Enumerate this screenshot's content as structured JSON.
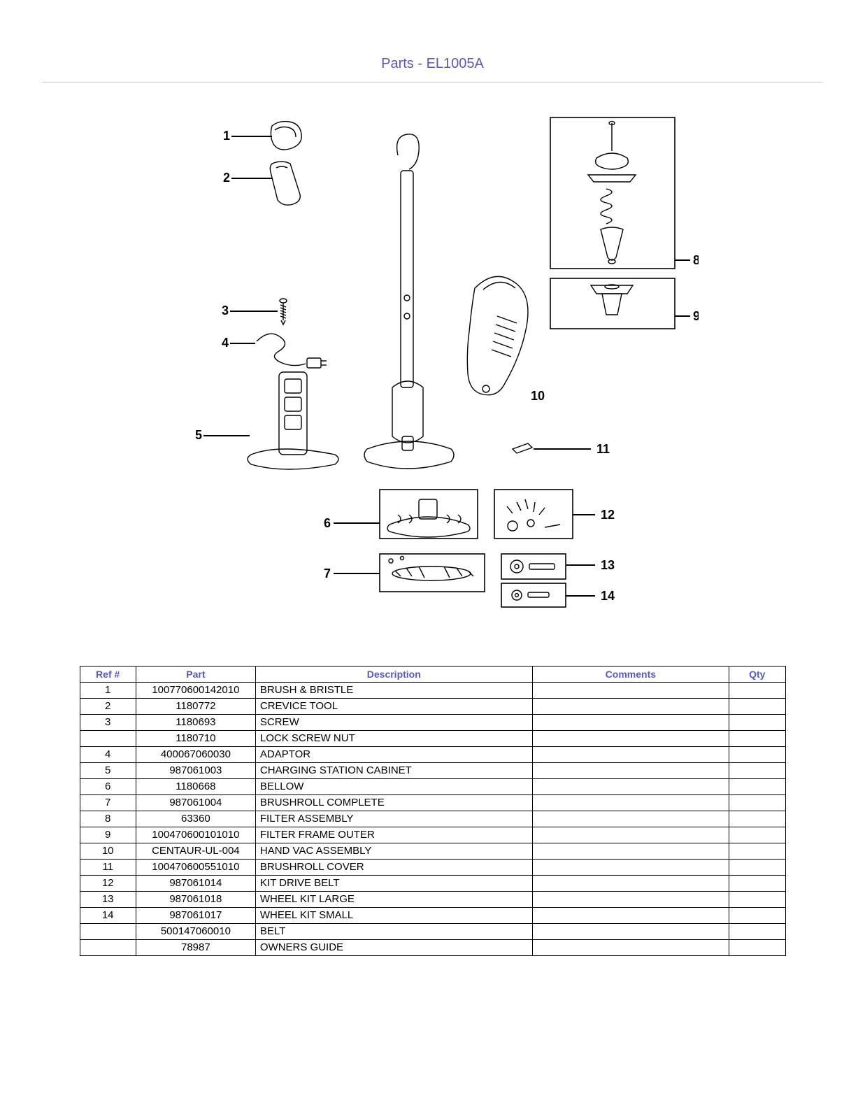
{
  "title": "Parts - EL1005A",
  "colors": {
    "title": "#5a5ab5",
    "hr": "#c8c8e0",
    "header_text": "#5a5ab5",
    "border": "#000000",
    "background": "#ffffff"
  },
  "diagram": {
    "callouts": [
      "1",
      "2",
      "3",
      "4",
      "5",
      "6",
      "7",
      "8",
      "9",
      "10",
      "11",
      "12",
      "13",
      "14"
    ]
  },
  "table": {
    "headers": {
      "ref": "Ref #",
      "part": "Part",
      "desc": "Description",
      "comments": "Comments",
      "qty": "Qty"
    },
    "rows": [
      {
        "ref": "1",
        "part": "100770600142010",
        "desc": "BRUSH & BRISTLE",
        "comments": "",
        "qty": ""
      },
      {
        "ref": "2",
        "part": "1180772",
        "desc": "CREVICE TOOL",
        "comments": "",
        "qty": ""
      },
      {
        "ref": "3",
        "part": "1180693",
        "desc": "SCREW",
        "comments": "",
        "qty": ""
      },
      {
        "ref": "",
        "part": "1180710",
        "desc": "LOCK SCREW NUT",
        "comments": "",
        "qty": ""
      },
      {
        "ref": "4",
        "part": "400067060030",
        "desc": "ADAPTOR",
        "comments": "",
        "qty": ""
      },
      {
        "ref": "5",
        "part": "987061003",
        "desc": "CHARGING STATION CABINET",
        "comments": "",
        "qty": ""
      },
      {
        "ref": "6",
        "part": "1180668",
        "desc": "BELLOW",
        "comments": "",
        "qty": ""
      },
      {
        "ref": "7",
        "part": "987061004",
        "desc": "BRUSHROLL COMPLETE",
        "comments": "",
        "qty": ""
      },
      {
        "ref": "8",
        "part": "63360",
        "desc": "FILTER ASSEMBLY",
        "comments": "",
        "qty": ""
      },
      {
        "ref": "9",
        "part": "100470600101010",
        "desc": "FILTER FRAME OUTER",
        "comments": "",
        "qty": ""
      },
      {
        "ref": "10",
        "part": "CENTAUR-UL-004",
        "desc": "HAND VAC ASSEMBLY",
        "comments": "",
        "qty": ""
      },
      {
        "ref": "11",
        "part": "100470600551010",
        "desc": "BRUSHROLL COVER",
        "comments": "",
        "qty": ""
      },
      {
        "ref": "12",
        "part": "987061014",
        "desc": "KIT DRIVE BELT",
        "comments": "",
        "qty": ""
      },
      {
        "ref": "13",
        "part": "987061018",
        "desc": "WHEEL KIT LARGE",
        "comments": "",
        "qty": ""
      },
      {
        "ref": "14",
        "part": "987061017",
        "desc": "WHEEL KIT SMALL",
        "comments": "",
        "qty": ""
      },
      {
        "ref": "",
        "part": "500147060010",
        "desc": "BELT",
        "comments": "",
        "qty": ""
      },
      {
        "ref": "",
        "part": "78987",
        "desc": "OWNERS GUIDE",
        "comments": "",
        "qty": ""
      }
    ]
  }
}
